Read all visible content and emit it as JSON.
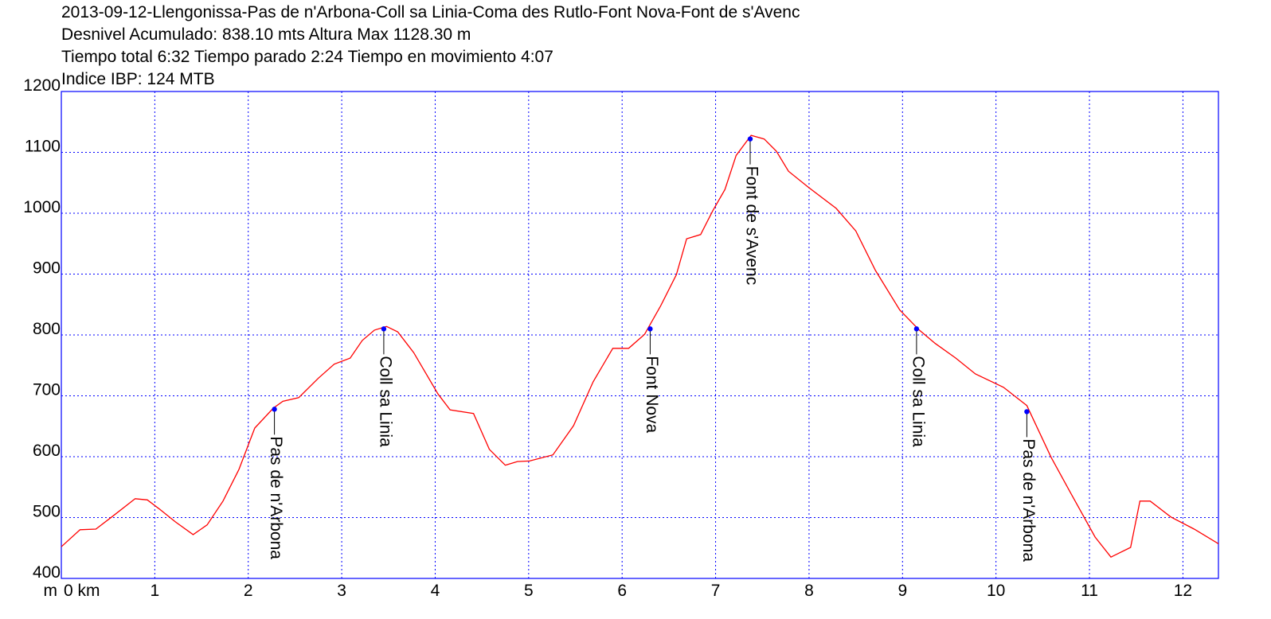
{
  "chart_data": {
    "type": "line",
    "title_lines": [
      "2013-09-12-Llengonissa-Pas de n'Arbona-Coll sa Linia-Coma des Rutlo-Font Nova-Font de s'Avenc",
      "Desnivel Acumulado: 838.10 mts  Altura Max 1128.30 m",
      "Tiempo total 6:32 Tiempo parado 2:24 Tiempo en movimiento 4:07",
      "Indice IBP: 124 MTB"
    ],
    "ylabel": "m",
    "xlim": [
      0,
      12.38
    ],
    "ylim": [
      400,
      1200
    ],
    "xticks": [
      {
        "value": 0,
        "label": "0 km"
      },
      1,
      2,
      3,
      4,
      5,
      6,
      7,
      8,
      9,
      10,
      11,
      12
    ],
    "yticks": [
      400,
      500,
      600,
      700,
      800,
      900,
      1000,
      1100,
      1200
    ],
    "grid": true,
    "grid_color": "#0000ff",
    "frame_color": "#0000ff",
    "series": [
      {
        "color": "#ff0000",
        "x": [
          0,
          0.2,
          0.37,
          0.54,
          0.79,
          0.92,
          1.05,
          1.22,
          1.41,
          1.56,
          1.73,
          1.9,
          2.07,
          2.27,
          2.37,
          2.54,
          2.75,
          2.92,
          3.09,
          3.22,
          3.35,
          3.48,
          3.6,
          3.77,
          4.03,
          4.16,
          4.41,
          4.58,
          4.75,
          4.88,
          5.01,
          5.26,
          5.48,
          5.69,
          5.9,
          6.07,
          6.24,
          6.41,
          6.58,
          6.69,
          6.84,
          6.97,
          7.1,
          7.22,
          7.38,
          7.52,
          7.65,
          7.78,
          7.99,
          8.29,
          8.5,
          8.71,
          8.97,
          9.18,
          9.35,
          9.57,
          9.78,
          10.08,
          10.33,
          10.59,
          10.8,
          11.06,
          11.23,
          11.44,
          11.54,
          11.65,
          11.87,
          12.12,
          12.38
        ],
        "values": [
          452,
          480,
          481,
          501,
          531,
          529,
          514,
          493,
          472,
          488,
          527,
          579,
          647,
          680,
          691,
          697,
          729,
          752,
          762,
          791,
          808,
          814,
          805,
          771,
          703,
          677,
          671,
          612,
          586,
          592,
          593,
          603,
          651,
          723,
          778,
          778,
          801,
          847,
          899,
          958,
          965,
          1004,
          1039,
          1095,
          1128,
          1122,
          1102,
          1069,
          1043,
          1008,
          971,
          906,
          841,
          808,
          786,
          762,
          736,
          714,
          684,
          599,
          540,
          468,
          435,
          451,
          527,
          527,
          501,
          481,
          457
        ]
      }
    ],
    "waypoints": {
      "color": "#0000ff",
      "x": [
        2.28,
        3.45,
        6.3,
        7.37,
        9.15,
        10.33
      ],
      "values": [
        678,
        810,
        810,
        1122,
        810,
        674
      ],
      "labels": [
        "Pas de n'Arbona",
        "Coll sa Linia",
        "Font Nova",
        "Font de s'Avenc",
        "Coll sa Linia",
        "Pas de n'Arbona"
      ]
    }
  }
}
